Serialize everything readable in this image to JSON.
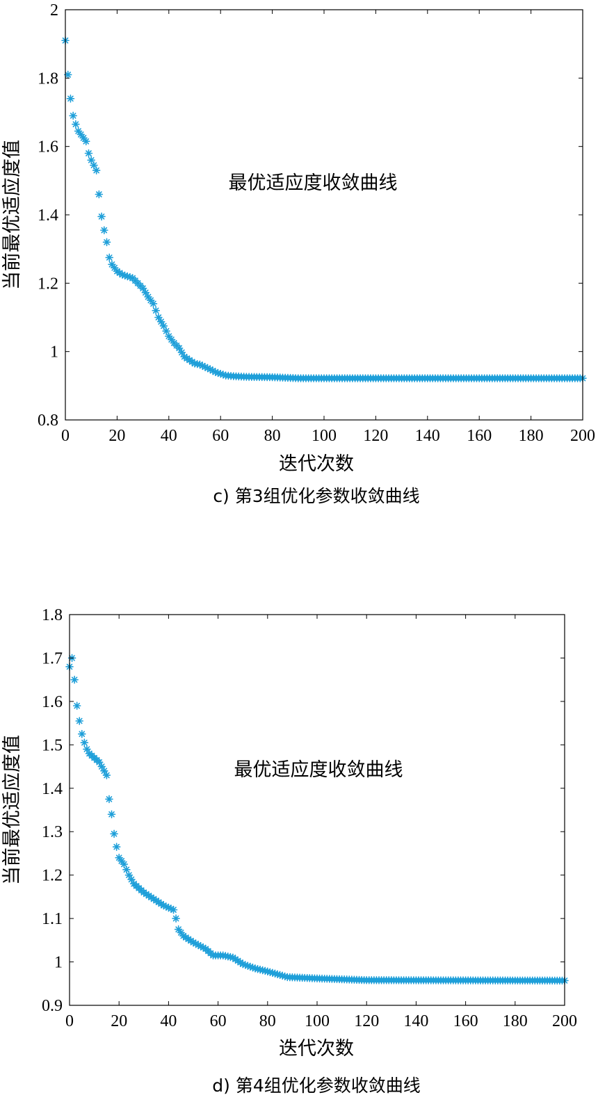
{
  "chart_data": [
    {
      "type": "scatter",
      "title": "",
      "annotation": "最优适应度收敛曲线",
      "xlabel": "迭代次数",
      "ylabel": "当前最优适应度值",
      "caption": "c) 第3组优化参数收敛曲线",
      "xlim": [
        0,
        200
      ],
      "ylim": [
        0.8,
        2
      ],
      "xticks": [
        "0",
        "20",
        "40",
        "60",
        "80",
        "100",
        "120",
        "140",
        "160",
        "180",
        "200"
      ],
      "yticks": [
        "0.8",
        "1",
        "1.2",
        "1.4",
        "1.6",
        "1.8",
        "2"
      ],
      "grid": false,
      "marker_color": "#1e9fd9",
      "marker": "asterisk",
      "anchors": [
        [
          0,
          1.91
        ],
        [
          1,
          1.81
        ],
        [
          2,
          1.74
        ],
        [
          3,
          1.69
        ],
        [
          4,
          1.665
        ],
        [
          5,
          1.645
        ],
        [
          6,
          1.635
        ],
        [
          7,
          1.625
        ],
        [
          8,
          1.615
        ],
        [
          9,
          1.58
        ],
        [
          10,
          1.56
        ],
        [
          11,
          1.545
        ],
        [
          12,
          1.53
        ],
        [
          13,
          1.46
        ],
        [
          14,
          1.395
        ],
        [
          15,
          1.355
        ],
        [
          16,
          1.32
        ],
        [
          17,
          1.275
        ],
        [
          18,
          1.255
        ],
        [
          19,
          1.245
        ],
        [
          20,
          1.235
        ],
        [
          22,
          1.225
        ],
        [
          24,
          1.22
        ],
        [
          26,
          1.215
        ],
        [
          28,
          1.2
        ],
        [
          30,
          1.185
        ],
        [
          32,
          1.16
        ],
        [
          34,
          1.14
        ],
        [
          36,
          1.1
        ],
        [
          38,
          1.075
        ],
        [
          40,
          1.045
        ],
        [
          42,
          1.025
        ],
        [
          44,
          1.01
        ],
        [
          46,
          0.985
        ],
        [
          48,
          0.975
        ],
        [
          50,
          0.965
        ],
        [
          52,
          0.962
        ],
        [
          54,
          0.955
        ],
        [
          56,
          0.948
        ],
        [
          58,
          0.94
        ],
        [
          60,
          0.935
        ],
        [
          62,
          0.93
        ],
        [
          65,
          0.928
        ],
        [
          70,
          0.926
        ],
        [
          80,
          0.925
        ],
        [
          90,
          0.922
        ],
        [
          100,
          0.922
        ],
        [
          200,
          0.922
        ]
      ]
    },
    {
      "type": "scatter",
      "title": "",
      "annotation": "最优适应度收敛曲线",
      "xlabel": "迭代次数",
      "ylabel": "当前最优适应度值",
      "caption": "d) 第4组优化参数收敛曲线",
      "xlim": [
        0,
        200
      ],
      "ylim": [
        0.9,
        1.8
      ],
      "xticks": [
        "0",
        "20",
        "40",
        "60",
        "80",
        "100",
        "120",
        "140",
        "160",
        "180",
        "200"
      ],
      "yticks": [
        "0.9",
        "1",
        "1.1",
        "1.2",
        "1.3",
        "1.4",
        "1.5",
        "1.6",
        "1.7",
        "1.8"
      ],
      "grid": false,
      "marker_color": "#1e9fd9",
      "marker": "asterisk",
      "anchors": [
        [
          0,
          1.68
        ],
        [
          1,
          1.7
        ],
        [
          2,
          1.65
        ],
        [
          3,
          1.59
        ],
        [
          4,
          1.555
        ],
        [
          5,
          1.525
        ],
        [
          6,
          1.505
        ],
        [
          7,
          1.49
        ],
        [
          8,
          1.48
        ],
        [
          10,
          1.47
        ],
        [
          12,
          1.46
        ],
        [
          14,
          1.44
        ],
        [
          15,
          1.43
        ],
        [
          16,
          1.375
        ],
        [
          17,
          1.34
        ],
        [
          18,
          1.295
        ],
        [
          19,
          1.265
        ],
        [
          20,
          1.24
        ],
        [
          22,
          1.225
        ],
        [
          24,
          1.2
        ],
        [
          26,
          1.18
        ],
        [
          28,
          1.17
        ],
        [
          30,
          1.16
        ],
        [
          34,
          1.145
        ],
        [
          38,
          1.13
        ],
        [
          42,
          1.12
        ],
        [
          43,
          1.1
        ],
        [
          44,
          1.075
        ],
        [
          46,
          1.06
        ],
        [
          50,
          1.045
        ],
        [
          55,
          1.03
        ],
        [
          58,
          1.015
        ],
        [
          62,
          1.015
        ],
        [
          66,
          1.01
        ],
        [
          70,
          0.995
        ],
        [
          75,
          0.985
        ],
        [
          80,
          0.978
        ],
        [
          85,
          0.97
        ],
        [
          88,
          0.965
        ],
        [
          100,
          0.962
        ],
        [
          110,
          0.96
        ],
        [
          120,
          0.958
        ],
        [
          200,
          0.957
        ]
      ]
    }
  ]
}
